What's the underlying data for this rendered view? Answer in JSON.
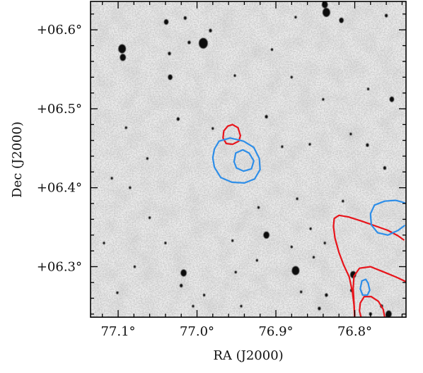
{
  "chart_data": {
    "type": "contour",
    "xlabel": "RA (J2000)",
    "ylabel": "Dec (J2000)",
    "x_ticks": [
      {
        "value": 77.1,
        "label": "77.1°"
      },
      {
        "value": 77.0,
        "label": "77.0°"
      },
      {
        "value": 76.9,
        "label": "76.9°"
      },
      {
        "value": 76.8,
        "label": "76.8°"
      }
    ],
    "y_ticks": [
      {
        "value": 6.6,
        "label": "+06.6°"
      },
      {
        "value": 6.5,
        "label": "+06.5°"
      },
      {
        "value": 6.4,
        "label": "+06.4°"
      },
      {
        "value": 6.3,
        "label": "+06.3°"
      }
    ],
    "xlim": [
      77.135,
      76.735
    ],
    "ylim": [
      6.236,
      6.636
    ],
    "x_reversed": true,
    "background": "grayscale optical image",
    "series": [
      {
        "color": "#e8141b",
        "contours": [
          [
            [
              76.961,
              6.478
            ],
            [
              76.955,
              6.48
            ],
            [
              76.948,
              6.476
            ],
            [
              76.945,
              6.466
            ],
            [
              76.947,
              6.459
            ],
            [
              76.955,
              6.455
            ],
            [
              76.963,
              6.456
            ],
            [
              76.967,
              6.463
            ],
            [
              76.966,
              6.472
            ],
            [
              76.961,
              6.478
            ]
          ],
          [
            [
              76.738,
              6.334
            ],
            [
              76.745,
              6.339
            ],
            [
              76.758,
              6.346
            ],
            [
              76.775,
              6.352
            ],
            [
              76.792,
              6.358
            ],
            [
              76.808,
              6.363
            ],
            [
              76.82,
              6.365
            ],
            [
              76.826,
              6.361
            ],
            [
              76.827,
              6.351
            ],
            [
              76.825,
              6.336
            ],
            [
              76.82,
              6.318
            ],
            [
              76.814,
              6.302
            ],
            [
              76.807,
              6.287
            ],
            [
              76.803,
              6.268
            ],
            [
              76.801,
              6.252
            ],
            [
              76.8,
              6.236
            ]
          ],
          [
            [
              76.735,
              6.281
            ],
            [
              76.748,
              6.287
            ],
            [
              76.765,
              6.294
            ],
            [
              76.78,
              6.3
            ],
            [
              76.794,
              6.298
            ],
            [
              76.801,
              6.288
            ],
            [
              76.802,
              6.272
            ],
            [
              76.801,
              6.255
            ],
            [
              76.8,
              6.236
            ]
          ],
          [
            [
              76.762,
              6.236
            ],
            [
              76.764,
              6.246
            ],
            [
              76.77,
              6.256
            ],
            [
              76.779,
              6.262
            ],
            [
              76.788,
              6.262
            ],
            [
              76.793,
              6.254
            ],
            [
              76.794,
              6.244
            ],
            [
              76.792,
              6.236
            ]
          ]
        ]
      },
      {
        "color": "#2e8ee8",
        "contours": [
          [
            [
              76.978,
              6.449
            ],
            [
              76.972,
              6.459
            ],
            [
              76.958,
              6.463
            ],
            [
              76.941,
              6.459
            ],
            [
              76.928,
              6.451
            ],
            [
              76.921,
              6.437
            ],
            [
              76.92,
              6.423
            ],
            [
              76.927,
              6.411
            ],
            [
              76.94,
              6.406
            ],
            [
              76.956,
              6.407
            ],
            [
              76.97,
              6.413
            ],
            [
              76.978,
              6.426
            ],
            [
              76.98,
              6.438
            ],
            [
              76.978,
              6.449
            ]
          ],
          [
            [
              76.953,
              6.433
            ],
            [
              76.951,
              6.444
            ],
            [
              76.942,
              6.448
            ],
            [
              76.934,
              6.444
            ],
            [
              76.928,
              6.434
            ],
            [
              76.931,
              6.424
            ],
            [
              76.941,
              6.421
            ],
            [
              76.95,
              6.425
            ],
            [
              76.953,
              6.433
            ]
          ],
          [
            [
              76.737,
              6.352
            ],
            [
              76.745,
              6.346
            ],
            [
              76.758,
              6.34
            ],
            [
              76.771,
              6.343
            ],
            [
              76.779,
              6.353
            ],
            [
              76.78,
              6.367
            ],
            [
              76.775,
              6.378
            ],
            [
              76.762,
              6.383
            ],
            [
              76.748,
              6.384
            ],
            [
              76.737,
              6.381
            ]
          ],
          [
            [
              76.786,
              6.284
            ],
            [
              76.783,
              6.279
            ],
            [
              76.781,
              6.27
            ],
            [
              76.784,
              6.264
            ],
            [
              76.79,
              6.264
            ],
            [
              76.793,
              6.272
            ],
            [
              76.791,
              6.282
            ],
            [
              76.786,
              6.284
            ]
          ]
        ]
      }
    ],
    "stars": [
      [
        77.095,
        6.576,
        5
      ],
      [
        77.094,
        6.565,
        4
      ],
      [
        77.039,
        6.61,
        3
      ],
      [
        77.015,
        6.615,
        2
      ],
      [
        77.01,
        6.584,
        2
      ],
      [
        77.035,
        6.57,
        2
      ],
      [
        76.983,
        6.599,
        2
      ],
      [
        76.875,
        6.616,
        1.5
      ],
      [
        76.838,
        6.632,
        4
      ],
      [
        76.836,
        6.622,
        5
      ],
      [
        76.817,
        6.612,
        3
      ],
      [
        76.76,
        6.618,
        2
      ],
      [
        77.034,
        6.54,
        3
      ],
      [
        76.992,
        6.583,
        6
      ],
      [
        76.912,
        6.49,
        2
      ],
      [
        76.905,
        6.575,
        1.5
      ],
      [
        76.88,
        6.54,
        1.5
      ],
      [
        76.84,
        6.512,
        1.5
      ],
      [
        76.753,
        6.512,
        3
      ],
      [
        76.784,
        6.454,
        2
      ],
      [
        76.762,
        6.425,
        2
      ],
      [
        76.98,
        6.475,
        1.5
      ],
      [
        77.024,
        6.487,
        2
      ],
      [
        77.063,
        6.437,
        1.5
      ],
      [
        77.108,
        6.412,
        1.5
      ],
      [
        77.09,
        6.476,
        1.5
      ],
      [
        76.922,
        6.375,
        1.5
      ],
      [
        76.912,
        6.34,
        4
      ],
      [
        76.873,
        6.386,
        1.5
      ],
      [
        76.856,
        6.348,
        1.5
      ],
      [
        76.838,
        6.33,
        1.5
      ],
      [
        77.017,
        6.292,
        4
      ],
      [
        77.02,
        6.276,
        2
      ],
      [
        76.991,
        6.264,
        1.5
      ],
      [
        76.868,
        6.268,
        1.5
      ],
      [
        76.852,
        6.312,
        1.5
      ],
      [
        76.875,
        6.295,
        5
      ],
      [
        76.802,
        6.29,
        4
      ],
      [
        76.804,
        6.27,
        2
      ],
      [
        76.836,
        6.264,
        2
      ],
      [
        76.845,
        6.247,
        2
      ],
      [
        76.78,
        6.24,
        2
      ],
      [
        76.766,
        6.25,
        2
      ],
      [
        76.757,
        6.24,
        4
      ],
      [
        77.085,
        6.4,
        1.5
      ],
      [
        77.079,
        6.3,
        1.5
      ],
      [
        77.118,
        6.33,
        1.5
      ],
      [
        77.06,
        6.362,
        1.5
      ],
      [
        76.892,
        6.452,
        1.5
      ],
      [
        76.815,
        6.383,
        1.5
      ],
      [
        76.88,
        6.325,
        1.5
      ],
      [
        76.955,
        6.333,
        1.5
      ],
      [
        77.04,
        6.33,
        1.5
      ],
      [
        76.951,
        6.293,
        1.5
      ],
      [
        76.924,
        6.308,
        1.5
      ],
      [
        76.944,
        6.25,
        1.5
      ],
      [
        77.005,
        6.25,
        1.5
      ],
      [
        77.101,
        6.267,
        1.5
      ],
      [
        76.805,
        6.468,
        1.5
      ],
      [
        76.783,
        6.525,
        1.5
      ],
      [
        76.857,
        6.455,
        1.5
      ],
      [
        76.952,
        6.542,
        1.5
      ]
    ]
  }
}
